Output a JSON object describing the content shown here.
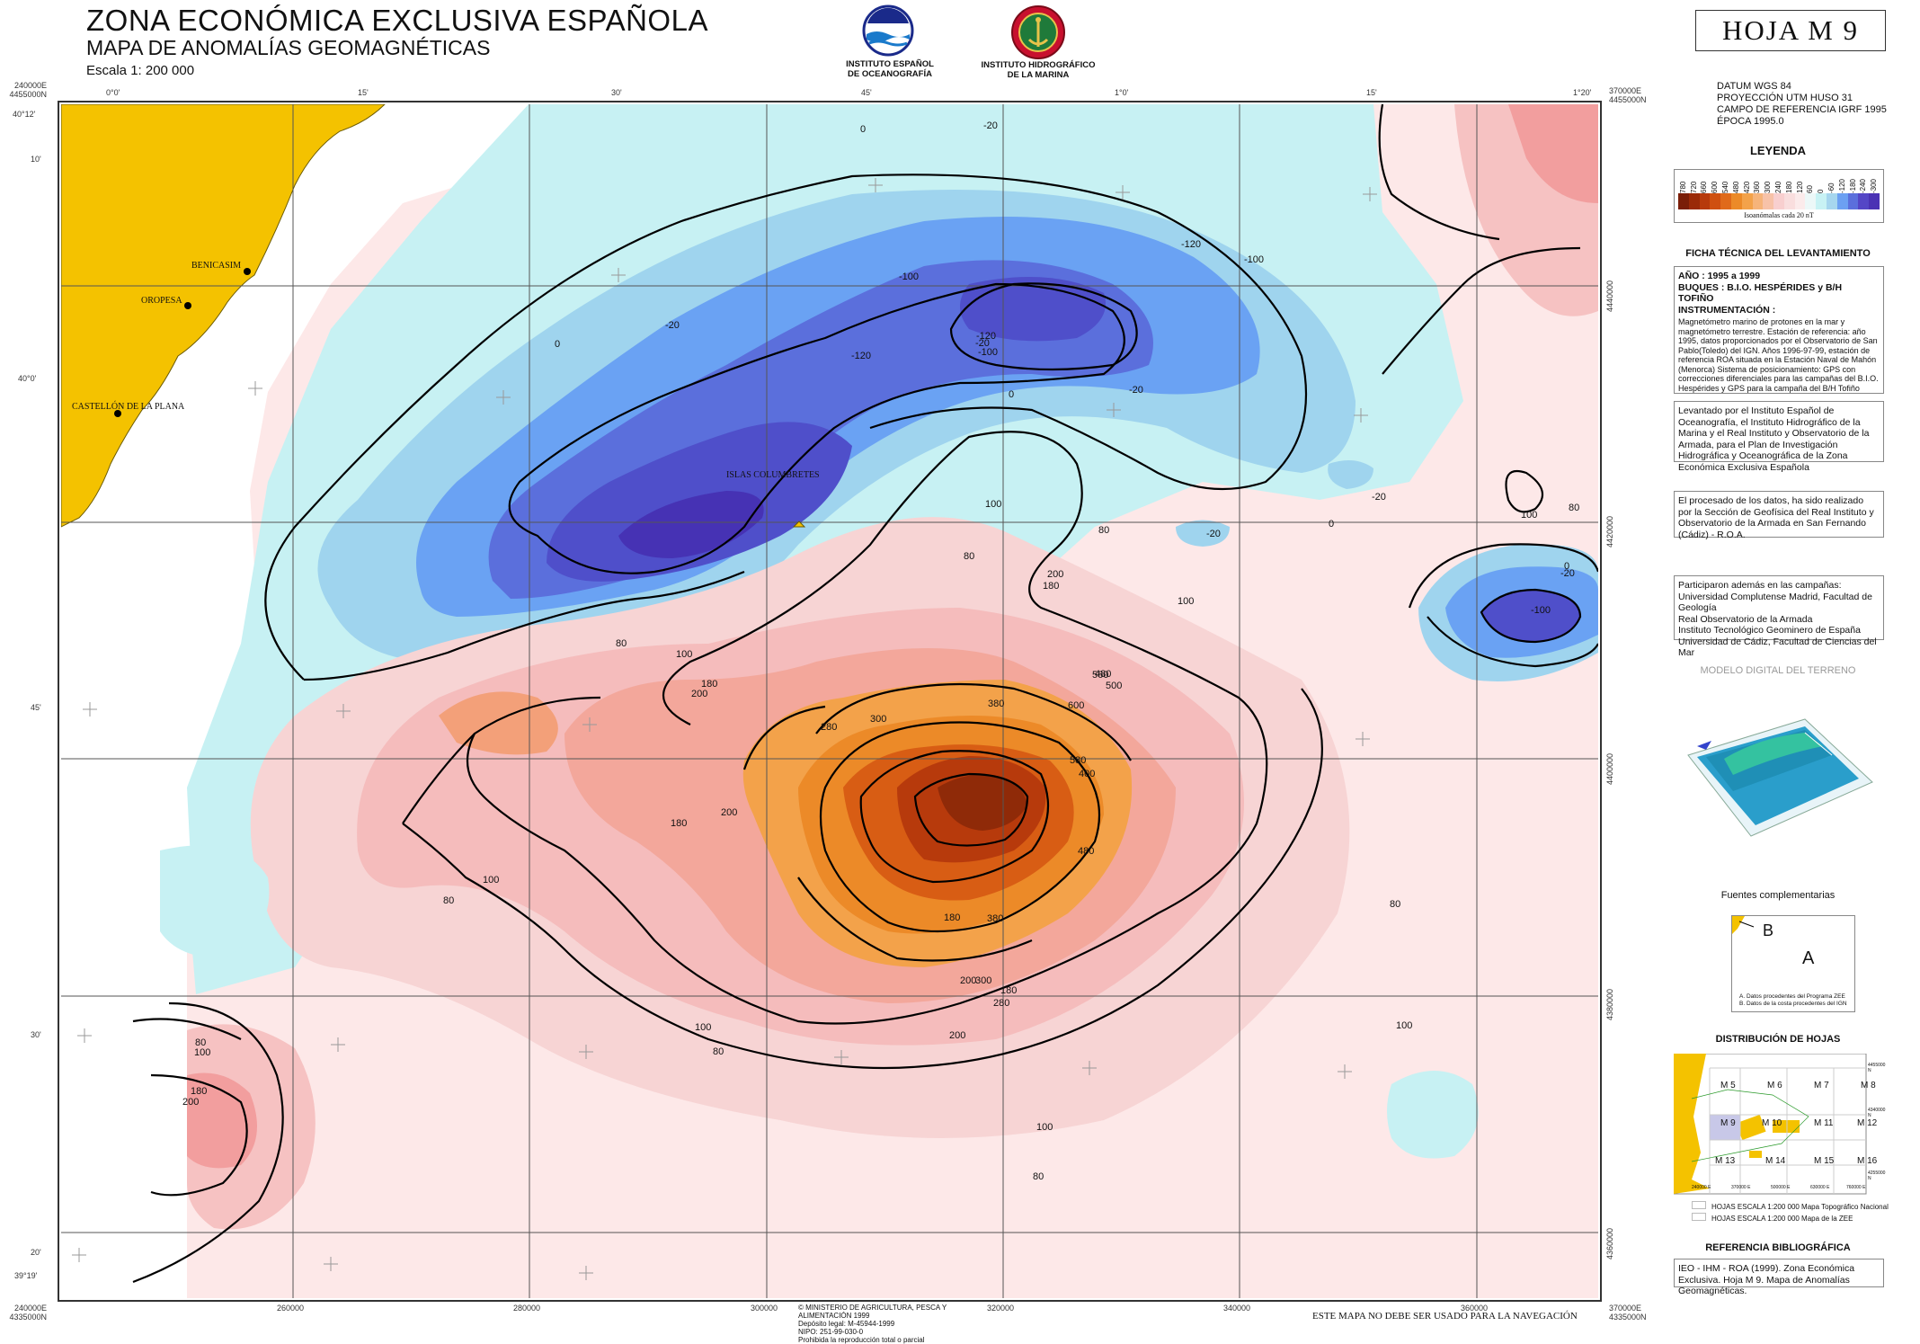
{
  "header": {
    "title": "ZONA ECONÓMICA EXCLUSIVA ESPAÑOLA",
    "subtitle": "MAPA DE ANOMALÍAS GEOMAGNÉTICAS",
    "scale": "Escala 1: 200 000",
    "institution_1": [
      "INSTITUTO ESPAÑOL",
      "DE OCEANOGRAFÍA"
    ],
    "institution_2": [
      "INSTITUTO HIDROGRÁFICO",
      "DE LA MARINA"
    ],
    "sheet": "HOJA M 9"
  },
  "datum": [
    "DATUM WGS 84",
    "PROYECCIÓN UTM HUSO 31",
    "CAMPO DE REFERENCIA IGRF 1995",
    "ÉPOCA 1995.0"
  ],
  "legend": {
    "title": "LEYENDA",
    "values": [
      "780",
      "720",
      "660",
      "600",
      "540",
      "480",
      "420",
      "360",
      "300",
      "240",
      "180",
      "120",
      "60",
      "0",
      "-60",
      "-120",
      "-180",
      "-240",
      "-300"
    ],
    "colors": [
      "#7a1e08",
      "#9a2a08",
      "#b73a0c",
      "#cf5010",
      "#e06a1a",
      "#ec8a28",
      "#f3a24a",
      "#f6b47a",
      "#f7c2a8",
      "#f8cfcf",
      "#f9dede",
      "#fbebeb",
      "#ecf8f8",
      "#c8f2f4",
      "#a6d6ee",
      "#6ca0f2",
      "#5b6fdc",
      "#5446c6",
      "#4a32b4"
    ],
    "caption": "Isoanómalas cada 20 nT"
  },
  "ficha": {
    "title": "FICHA TÉCNICA DEL LEVANTAMIENTO",
    "year": "AÑO : 1995 a 1999",
    "ships": "BUQUES : B.I.O. HESPÉRIDES y B/H TOFIÑO",
    "instr": "INSTRUMENTACIÓN :",
    "body": "Magnetómetro marino de protones en la mar y magnetómetro terrestre. Estación de referencia: año 1995, datos proporcionados por el Observatorio de San Pablo(Toledo) del IGN. Años 1996-97-99, estación de referencia ROA situada en la Estación Naval de Mahón (Menorca) Sistema de posicionamiento: GPS con correcciones diferenciales para las campañas del B.I.O. Hespérides y GPS para la campaña del B/H Tofiño"
  },
  "box_levantado": "Levantado por el Instituto Español de Oceanografía, el Instituto Hidrográfico de la Marina y el Real Instituto y Observatorio de la Armada, para el Plan de Investigación Hidrográfica y Oceanográfica de la Zona Económica Exclusiva Española",
  "box_procesado": "El procesado de los datos, ha sido realizado por la Sección de Geofísica del Real Instituto y Observatorio de la Armada en San Fernando (Cádiz) - R.O.A.",
  "box_participaron": [
    "Participaron además en las campañas:",
    "Universidad Complutense Madrid, Facultad de Geología",
    "Real Observatorio de la Armada",
    "Instituto Tecnológico Geominero de España",
    "Universidad de Cádiz, Facultad de Ciencias del Mar"
  ],
  "modelo": "MODELO DIGITAL DEL TERRENO",
  "fuentes": {
    "title": "Fuentes complementarias",
    "a": "A",
    "b": "B",
    "note_a": "A. Datos procedentes del Programa ZEE",
    "note_b": "B. Datos de la costa procedentes del IGN"
  },
  "distribucion": {
    "title": "DISTRIBUCIÓN DE HOJAS",
    "sheets": [
      "M 5",
      "M 6",
      "M 7",
      "M 8",
      "M 9",
      "M 10",
      "M 11",
      "M 12",
      "M 13",
      "M 14",
      "M 15",
      "M 16"
    ],
    "bottom_ticks": [
      "240000 E",
      "370000 E",
      "500000 E",
      "630000 E",
      "760000 E"
    ],
    "right_ticks": [
      "4455000 N",
      "4340000 N",
      "4255000 N"
    ],
    "key_1": "HOJAS ESCALA 1:200 000 Mapa Topográfico Nacional",
    "key_2": "HOJAS ESCALA 1:200 000 Mapa de la ZEE"
  },
  "referencia": {
    "title": "REFERENCIA BIBLIOGRÁFICA",
    "text": "IEO - IHM - ROA (1999). Zona Económica Exclusiva. Hoja M 9. Mapa de Anomalías Geomagnéticas."
  },
  "footer": {
    "copyright": [
      "© MINISTERIO DE AGRICULTURA, PESCA Y ALIMENTACIÓN 1999",
      "Depósito legal: M-45944-1999",
      "NIPO: 251-99-030-0",
      "Prohibida la reproducción total o parcial"
    ],
    "warning": "ESTE MAPA NO DEBE SER USADO PARA LA NAVEGACIÓN"
  },
  "map": {
    "corner_tl": [
      "240000E",
      "4455000N"
    ],
    "corner_tr": [
      "370000E",
      "4455000N"
    ],
    "corner_bl": [
      "240000E",
      "4335000N"
    ],
    "corner_br": [
      "370000E",
      "4335000N"
    ],
    "top_ticks": [
      "0°0'",
      "15'",
      "30'",
      "45'",
      "1°0'",
      "15'",
      "1°20'"
    ],
    "bottom_ticks": [
      "260000",
      "280000",
      "300000",
      "320000",
      "340000",
      "360000"
    ],
    "left_ticks": [
      "40°12'",
      "10'",
      "40°0'",
      "45'",
      "30'",
      "20'",
      "39°19'"
    ],
    "right_ticks": [
      "4440000",
      "4420000",
      "4400000",
      "4380000",
      "4360000"
    ],
    "places": [
      "BENICASIM",
      "OROPESA",
      "CASTELLÓN DE LA PLANA",
      "ISLAS COLUMBRETES"
    ],
    "contour_labels": [
      "0",
      "-20",
      "-20",
      "-100",
      "-120",
      "-120",
      "-100",
      "0",
      "-20",
      "-120",
      "-100",
      "-20",
      "0",
      "-20",
      "100",
      "80",
      "-20",
      "0",
      "200",
      "180",
      "100",
      "80",
      "-100",
      "-20",
      "0",
      "100",
      "80",
      "180",
      "200",
      "100",
      "80",
      "180",
      "200",
      "300",
      "280",
      "380",
      "480",
      "500",
      "560",
      "600",
      "580",
      "480",
      "400",
      "380",
      "300",
      "280",
      "200",
      "180",
      "200",
      "180",
      "100",
      "80",
      "100",
      "80",
      "80",
      "100",
      "180",
      "200",
      "100",
      "80",
      "80",
      "100"
    ]
  }
}
